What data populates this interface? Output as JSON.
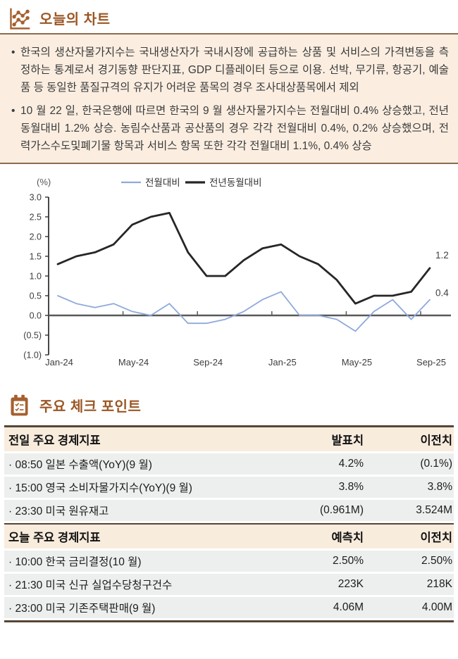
{
  "section_chart": {
    "title": "오늘의 차트"
  },
  "bullets": {
    "b1": "한국의 생산자물가지수는 국내생산자가 국내시장에 공급하는 상품 및 서비스의 가격변동을 측정하는 통계로서 경기동향 판단지표, GDP 디플레이터 등으로 이용. 선박, 무기류, 항공기, 예술품 등 동일한 품질규격의 유지가 어려운 품목의 경우 조사대상품목에서 제외",
    "b2": "10 월 22 일, 한국은행에 따르면 한국의 9 월 생산자물가지수는 전월대비 0.4% 상승했고, 전년동월대비 1.2% 상승. 농림수산품과 공산품의 경우 각각 전월대비 0.4%, 0.2% 상승했으며, 전력가스수도및폐기물 항목과 서비스 항목 또한 각각 전월대비 1.1%, 0.4% 상승"
  },
  "chart_data": {
    "type": "line",
    "ylabel": "(%)",
    "ylim": [
      -1.0,
      3.0
    ],
    "grid": false,
    "legend_position": "top",
    "x": [
      "Jan-24",
      "Feb-24",
      "Mar-24",
      "Apr-24",
      "May-24",
      "Jun-24",
      "Jul-24",
      "Aug-24",
      "Sep-24",
      "Oct-24",
      "Nov-24",
      "Dec-24",
      "Jan-25",
      "Feb-25",
      "Mar-25",
      "Apr-25",
      "May-25",
      "Jun-25",
      "Jul-25",
      "Aug-25",
      "Sep-25"
    ],
    "x_tick_labels": [
      "Jan-24",
      "May-24",
      "Sep-24",
      "Jan-25",
      "May-25",
      "Sep-25"
    ],
    "x_tick_months": [
      0,
      4,
      8,
      12,
      16,
      20
    ],
    "y_ticks": [
      {
        "v": 3.0,
        "t": "3.0"
      },
      {
        "v": 2.5,
        "t": "2.5"
      },
      {
        "v": 2.0,
        "t": "2.0"
      },
      {
        "v": 1.5,
        "t": "1.5"
      },
      {
        "v": 1.0,
        "t": "1.0"
      },
      {
        "v": 0.5,
        "t": "0.5"
      },
      {
        "v": 0.0,
        "t": "0.0"
      },
      {
        "v": -0.5,
        "t": "(0.5)"
      },
      {
        "v": -1.0,
        "t": "(1.0)"
      }
    ],
    "series": [
      {
        "name": "전월대비",
        "color": "#8EA9DB",
        "width": 1.8,
        "end_label": "0.4",
        "values": [
          0.5,
          0.3,
          0.2,
          0.3,
          0.1,
          0.0,
          0.3,
          -0.2,
          -0.2,
          -0.1,
          0.1,
          0.4,
          0.6,
          0.0,
          0.0,
          -0.1,
          -0.4,
          0.1,
          0.4,
          -0.1,
          0.4
        ]
      },
      {
        "name": "전년동월대비",
        "color": "#262626",
        "width": 2.8,
        "end_label": "1.2",
        "values": [
          1.3,
          1.5,
          1.6,
          1.8,
          2.3,
          2.5,
          2.6,
          1.6,
          1.0,
          1.0,
          1.4,
          1.7,
          1.8,
          1.5,
          1.3,
          0.9,
          0.3,
          0.5,
          0.5,
          0.6,
          1.2
        ]
      }
    ]
  },
  "section_checkpoints": {
    "title": "주요 체크 포인트"
  },
  "table": {
    "groups": [
      {
        "header": [
          "전일 주요 경제지표",
          "발표치",
          "이전치"
        ],
        "rows": [
          {
            "cells": [
              "· 08:50 일본 수출액(YoY)(9 월)",
              "4.2%",
              "(0.1%)"
            ]
          },
          {
            "cells": [
              "· 15:00 영국 소비자물가지수(YoY)(9 월)",
              "3.8%",
              "3.8%"
            ]
          },
          {
            "cells": [
              "· 23:30 미국 원유재고",
              "(0.961M)",
              "3.524M"
            ]
          }
        ]
      },
      {
        "header": [
          "오늘 주요 경제지표",
          "예측치",
          "이전치"
        ],
        "rows": [
          {
            "cells": [
              "· 10:00 한국 금리결정(10 월)",
              "2.50%",
              "2.50%"
            ]
          },
          {
            "cells": [
              "· 21:30 미국 신규 실업수당청구건수",
              "223K",
              "218K"
            ]
          },
          {
            "cells": [
              "· 23:00 미국 기존주택판매(9 월)",
              "4.06M",
              "4.00M"
            ]
          }
        ]
      }
    ]
  },
  "colors": {
    "accent_brown": "#9B5623",
    "icon_brown": "#A5602F",
    "rule_light": "#8D6B4F",
    "rule_dark": "#564637",
    "peach_bg": "#FBEEE1",
    "table_header_bg": "#F8ECDD",
    "row_bg": "#EDEEEE",
    "mom_line": "#8EA9DB",
    "yoy_line": "#262626",
    "zero_line": "#595959"
  }
}
